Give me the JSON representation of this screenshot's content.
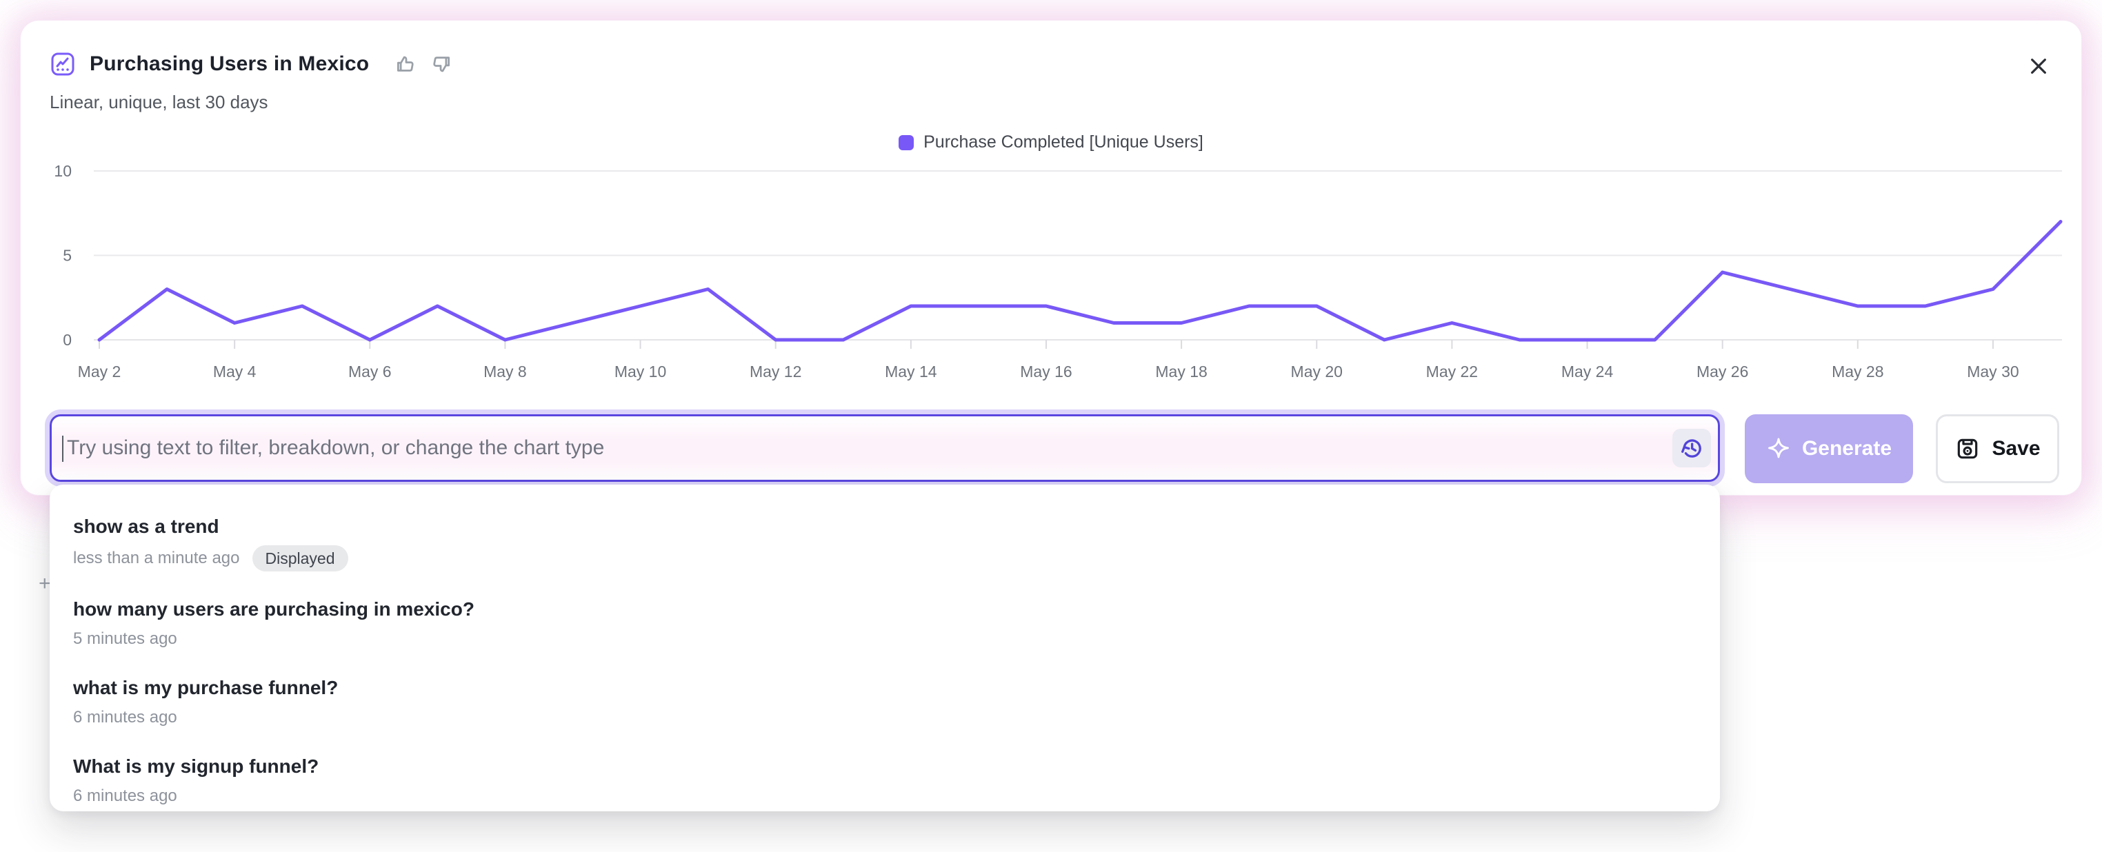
{
  "header": {
    "title": "Purchasing Users in Mexico",
    "subtitle": "Linear, unique, last 30 days"
  },
  "legend": {
    "label": "Purchase Completed [Unique Users]",
    "swatch_color": "#7858f6"
  },
  "chart_data": {
    "type": "line",
    "title": "Purchasing Users in Mexico",
    "xlabel": "",
    "ylabel": "",
    "ylim": [
      0,
      10
    ],
    "y_ticks": [
      0,
      5,
      10
    ],
    "grid": "horizontal",
    "legend_position": "top-center",
    "categories": [
      "May 2",
      "May 3",
      "May 4",
      "May 5",
      "May 6",
      "May 7",
      "May 8",
      "May 9",
      "May 10",
      "May 11",
      "May 12",
      "May 13",
      "May 14",
      "May 15",
      "May 16",
      "May 17",
      "May 18",
      "May 19",
      "May 20",
      "May 21",
      "May 22",
      "May 23",
      "May 24",
      "May 25",
      "May 26",
      "May 27",
      "May 28",
      "May 29",
      "May 30",
      "May 31"
    ],
    "x_axis_tick_labels": [
      "May 2",
      "May 4",
      "May 6",
      "May 8",
      "May 10",
      "May 12",
      "May 14",
      "May 16",
      "May 18",
      "May 20",
      "May 22",
      "May 24",
      "May 26",
      "May 28",
      "May 30"
    ],
    "series": [
      {
        "name": "Purchase Completed [Unique Users]",
        "color": "#7858f6",
        "values": [
          0,
          3,
          1,
          2,
          0,
          2,
          0,
          1,
          2,
          3,
          0,
          0,
          2,
          2,
          2,
          1,
          1,
          2,
          2,
          0,
          1,
          0,
          0,
          0,
          4,
          3,
          2,
          2,
          3,
          7
        ]
      }
    ]
  },
  "prompt_bar": {
    "placeholder": "Try using text to filter, breakdown, or change the chart type",
    "generate_label": "Generate",
    "save_label": "Save"
  },
  "history_dropdown": {
    "items": [
      {
        "query": "show as a trend",
        "time": "less than a minute ago",
        "badge": "Displayed"
      },
      {
        "query": "how many users are purchasing in mexico?",
        "time": "5 minutes ago"
      },
      {
        "query": "what is my purchase funnel?",
        "time": "6 minutes ago"
      },
      {
        "query": "What is my signup funnel?",
        "time": "6 minutes ago"
      }
    ]
  },
  "icons": {
    "header_icon": "line-chart-icon",
    "feedback": [
      "thumbs-up-icon",
      "thumbs-down-icon"
    ],
    "close": "close-icon",
    "history": "history-icon",
    "generate": "sparkle-icon",
    "save": "save-disk-icon"
  },
  "misc": {
    "partial_plus": "+"
  },
  "colors": {
    "accent_purple": "#7858f6",
    "input_border": "#5a46e0",
    "input_ring": "#ddd5fa",
    "generate_bg": "#b7abf1",
    "glow_pink": "#e7a9db",
    "gridline": "#e9e9ec",
    "axis_text": "#6e737c",
    "badge_bg": "#e8e9eb"
  }
}
